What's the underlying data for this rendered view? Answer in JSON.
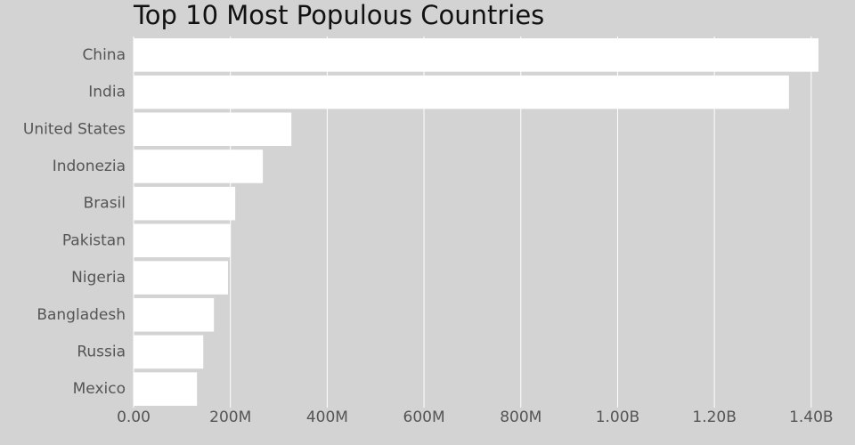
{
  "chart_data": {
    "type": "bar",
    "orientation": "horizontal",
    "title": "Top 10 Most Populous Countries",
    "categories": [
      "China",
      "India",
      "United States",
      "Indonezia",
      "Brasil",
      "Pakistan",
      "Nigeria",
      "Bangladesh",
      "Russia",
      "Mexico"
    ],
    "values": [
      1415000000,
      1354000000,
      326000000,
      267000000,
      210000000,
      200000000,
      195000000,
      166000000,
      144000000,
      131000000
    ],
    "color": "#ffffff",
    "xlim": [
      0,
      1420000000
    ],
    "xticks": [
      {
        "value": 0,
        "label": "0.00"
      },
      {
        "value": 200000000,
        "label": "200M"
      },
      {
        "value": 400000000,
        "label": "400M"
      },
      {
        "value": 600000000,
        "label": "600M"
      },
      {
        "value": 800000000,
        "label": "800M"
      },
      {
        "value": 1000000000,
        "label": "1.00B"
      },
      {
        "value": 1200000000,
        "label": "1.20B"
      },
      {
        "value": 1400000000,
        "label": "1.40B"
      }
    ],
    "grid": true
  }
}
